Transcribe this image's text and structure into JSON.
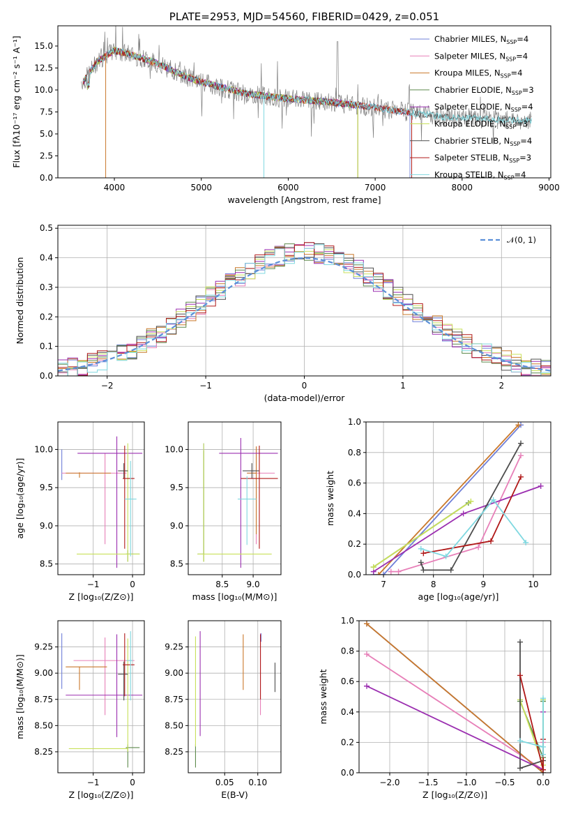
{
  "colors": {
    "Chabrier MILES": "#6f7fd8",
    "Salpeter MILES": "#e77fb8",
    "Kroupa MILES": "#c9782a",
    "Chabrier ELODIE": "#5e8a4c",
    "Salpeter ELODIE": "#9b2fb0",
    "Kroupa ELODIE": "#c8e05a",
    "Chabrier STELIB": "#4d4d4d",
    "Salpeter STELIB": "#b01818",
    "Kroupa STELIB": "#7fd8e0",
    "normal": "#5b8fd8",
    "observed": "#808080"
  },
  "chart_data": [
    {
      "id": "spectrum",
      "type": "line",
      "title": "PLATE=2953, MJD=54560, FIBERID=0429, z=0.051",
      "xlabel": "wavelength [Angstrom, rest frame]",
      "ylabel": "Flux [fλ10⁻¹⁷ erg cm⁻² s⁻¹ A⁻¹]",
      "xlim": [
        3350,
        9020
      ],
      "ylim": [
        0,
        17.3
      ],
      "xticks": [
        "4000",
        "5000",
        "6000",
        "7000",
        "8000",
        "9000"
      ],
      "yticks": [
        "0.0",
        "2.5",
        "5.0",
        "7.5",
        "10.0",
        "12.5",
        "15.0"
      ],
      "legend_position": "upper right",
      "legend": [
        {
          "label": "Chabrier MILES, N",
          "sub": "SSP",
          "suffix": "=4"
        },
        {
          "label": "Salpeter MILES, N",
          "sub": "SSP",
          "suffix": "=4"
        },
        {
          "label": "Kroupa MILES, N",
          "sub": "SSP",
          "suffix": "=4"
        },
        {
          "label": "Chabrier ELODIE, N",
          "sub": "SSP",
          "suffix": "=3"
        },
        {
          "label": "Salpeter ELODIE, N",
          "sub": "SSP",
          "suffix": "=4"
        },
        {
          "label": "Kroupa ELODIE, N",
          "sub": "SSP",
          "suffix": "=3"
        },
        {
          "label": "Chabrier STELIB, N",
          "sub": "SSP",
          "suffix": "=4"
        },
        {
          "label": "Salpeter STELIB, N",
          "sub": "SSP",
          "suffix": "=3"
        },
        {
          "label": "Kroupa STELIB, N",
          "sub": "SSP",
          "suffix": "=4"
        }
      ],
      "continuum": [
        [
          3650,
          11.0
        ],
        [
          3800,
          13.2
        ],
        [
          4000,
          14.5
        ],
        [
          4200,
          14.0
        ],
        [
          4500,
          13.0
        ],
        [
          4800,
          11.6
        ],
        [
          5000,
          10.9
        ],
        [
          5500,
          9.6
        ],
        [
          6000,
          9.0
        ],
        [
          6500,
          8.6
        ],
        [
          7000,
          8.0
        ],
        [
          7500,
          7.3
        ],
        [
          7800,
          6.9
        ],
        [
          8000,
          6.8
        ],
        [
          8500,
          6.6
        ],
        [
          8800,
          6.5
        ]
      ],
      "series_ranges": {
        "Chabrier MILES": [
          3640,
          7400
        ],
        "Salpeter MILES": [
          3640,
          7420
        ],
        "Kroupa MILES": [
          3640,
          7420
        ],
        "Chabrier ELODIE": [
          3640,
          6800
        ],
        "Salpeter ELODIE": [
          3640,
          6800
        ],
        "Kroupa ELODIE": [
          3640,
          6800
        ],
        "Chabrier STELIB": [
          3640,
          8800
        ],
        "Salpeter STELIB": [
          3640,
          7420
        ],
        "Kroupa STELIB": [
          3640,
          8800
        ]
      }
    },
    {
      "id": "residuals",
      "type": "step",
      "xlabel": "(data-model)/error",
      "ylabel": "Normed distribution",
      "xlim": [
        -2.5,
        2.5
      ],
      "ylim": [
        0,
        0.51
      ],
      "xticks": [
        "−2",
        "−1",
        "0",
        "1",
        "2"
      ],
      "yticks": [
        "0.0",
        "0.1",
        "0.2",
        "0.3",
        "0.4",
        "0.5"
      ],
      "legend_position": "upper right",
      "legend": [
        {
          "label": "𝒩(0, 1)"
        }
      ],
      "bin_width": 0.1
    },
    {
      "id": "age-vs-Z",
      "type": "errorbar",
      "xlabel": "Z [log₁₀(Z/Z⊙)]",
      "ylabel": "age  [log₁₀(age/yr)]",
      "xlim": [
        -1.9,
        0.3
      ],
      "ylim": [
        8.36,
        10.36
      ],
      "xticks": [
        "−1",
        "0"
      ],
      "yticks": [
        "8.5",
        "9.0",
        "9.5",
        "10.0"
      ],
      "points": [
        {
          "series": "Chabrier MILES",
          "x": -1.8,
          "y": 9.8,
          "xerr": [
            0.0,
            0.0
          ],
          "yerr": [
            0.2,
            0.2
          ]
        },
        {
          "series": "Salpeter MILES",
          "x": -0.7,
          "y": 9.69,
          "xerr": [
            1.1,
            0.55
          ],
          "yerr": [
            0.93,
            0.26
          ]
        },
        {
          "series": "Kroupa MILES",
          "x": -1.35,
          "y": 9.69,
          "xerr": [
            0.35,
            0.8
          ],
          "yerr": [
            0.06,
            0.01
          ]
        },
        {
          "series": "Chabrier ELODIE",
          "x": -0.12,
          "y": 8.63,
          "xerr": [
            0.05,
            0.3
          ],
          "yerr": [
            0.1,
            0.05
          ]
        },
        {
          "series": "Salpeter ELODIE",
          "x": -0.4,
          "y": 9.95,
          "xerr": [
            1.0,
            0.65
          ],
          "yerr": [
            1.5,
            0.22
          ]
        },
        {
          "series": "Kroupa ELODIE",
          "x": -0.12,
          "y": 8.63,
          "xerr": [
            1.3,
            0.3
          ],
          "yerr": [
            0.1,
            1.45
          ]
        },
        {
          "series": "Chabrier STELIB",
          "x": -0.22,
          "y": 9.72,
          "xerr": [
            0.15,
            0.1
          ],
          "yerr": [
            0.1,
            0.1
          ]
        },
        {
          "series": "Salpeter STELIB",
          "x": -0.2,
          "y": 9.62,
          "xerr": [
            0.05,
            0.25
          ],
          "yerr": [
            0.92,
            0.43
          ]
        },
        {
          "series": "Kroupa STELIB",
          "x": -0.05,
          "y": 9.35,
          "xerr": [
            0.15,
            0.15
          ],
          "yerr": [
            0.75,
            0.5
          ]
        }
      ]
    },
    {
      "id": "age-vs-mass",
      "type": "errorbar",
      "xlabel": "mass [log₁₀(M/M⊙)]",
      "ylabel": "",
      "xlim": [
        7.95,
        9.45
      ],
      "ylim": [
        8.36,
        10.36
      ],
      "xticks": [
        "8.5",
        "9.0"
      ],
      "yticks": [
        "8.5",
        "9.0",
        "9.5",
        "10.0"
      ],
      "points": [
        {
          "series": "Chabrier MILES",
          "x": 8.2,
          "y": 8.63,
          "xerr": [
            0.0,
            0.0
          ],
          "yerr": [
            0.0,
            1.45
          ]
        },
        {
          "series": "Salpeter MILES",
          "x": 9.05,
          "y": 9.69,
          "xerr": [
            0.15,
            0.3
          ],
          "yerr": [
            0.93,
            0.35
          ]
        },
        {
          "series": "Kroupa MILES",
          "x": 9.05,
          "y": 9.69,
          "xerr": [
            0.15,
            0.0
          ],
          "yerr": [
            0.8,
            0.35
          ]
        },
        {
          "series": "Chabrier ELODIE",
          "x": 8.2,
          "y": 8.63,
          "xerr": [
            0.1,
            0.0
          ],
          "yerr": [
            0.1,
            1.35
          ]
        },
        {
          "series": "Salpeter ELODIE",
          "x": 8.8,
          "y": 9.95,
          "xerr": [
            0.35,
            0.6
          ],
          "yerr": [
            1.5,
            0.2
          ]
        },
        {
          "series": "Kroupa ELODIE",
          "x": 8.2,
          "y": 8.63,
          "xerr": [
            0.1,
            1.1
          ],
          "yerr": [
            0.1,
            1.45
          ]
        },
        {
          "series": "Chabrier STELIB",
          "x": 8.98,
          "y": 9.72,
          "xerr": [
            0.15,
            0.12
          ],
          "yerr": [
            0.1,
            0.1
          ]
        },
        {
          "series": "Salpeter STELIB",
          "x": 9.1,
          "y": 9.62,
          "xerr": [
            0.3,
            0.3
          ],
          "yerr": [
            0.92,
            0.43
          ]
        },
        {
          "series": "Kroupa STELIB",
          "x": 8.9,
          "y": 9.35,
          "xerr": [
            0.15,
            0.15
          ],
          "yerr": [
            0.6,
            0.3
          ]
        }
      ]
    },
    {
      "id": "weights-vs-age",
      "type": "line",
      "xlabel": "age  [log₁₀(age/yr)]",
      "ylabel": "mass weight",
      "xlim": [
        6.65,
        10.35
      ],
      "ylim": [
        0.0,
        1.0
      ],
      "xticks": [
        "7",
        "8",
        "9",
        "10"
      ],
      "yticks": [
        "0.0",
        "0.2",
        "0.4",
        "0.6",
        "0.8",
        "1.0"
      ],
      "series": [
        {
          "name": "Chabrier MILES",
          "x": [
            6.8,
            7.0,
            9.75
          ],
          "y": [
            0.0,
            0.0,
            0.98
          ]
        },
        {
          "name": "Salpeter MILES",
          "x": [
            7.15,
            7.3,
            8.9,
            9.75
          ],
          "y": [
            0.02,
            0.02,
            0.18,
            0.78
          ]
        },
        {
          "name": "Kroupa MILES",
          "x": [
            6.9,
            9.7
          ],
          "y": [
            0.0,
            0.98
          ]
        },
        {
          "name": "Chabrier ELODIE",
          "x": [
            6.8,
            8.7
          ],
          "y": [
            0.05,
            0.47
          ]
        },
        {
          "name": "Salpeter ELODIE",
          "x": [
            6.8,
            8.6,
            10.15
          ],
          "y": [
            0.02,
            0.4,
            0.58
          ]
        },
        {
          "name": "Kroupa ELODIE",
          "x": [
            6.8,
            8.75
          ],
          "y": [
            0.05,
            0.48
          ]
        },
        {
          "name": "Chabrier STELIB",
          "x": [
            7.75,
            7.8,
            8.35,
            9.75
          ],
          "y": [
            0.08,
            0.03,
            0.03,
            0.86
          ]
        },
        {
          "name": "Salpeter STELIB",
          "x": [
            7.8,
            9.15,
            9.75
          ],
          "y": [
            0.14,
            0.22,
            0.64
          ]
        },
        {
          "name": "Kroupa STELIB",
          "x": [
            7.75,
            8.25,
            9.2,
            9.85
          ],
          "y": [
            0.17,
            0.12,
            0.49,
            0.21
          ]
        }
      ]
    },
    {
      "id": "mass-vs-Z",
      "type": "errorbar",
      "xlabel": "Z [log₁₀(Z/Z⊙)]",
      "ylabel": "mass [log₁₀(M/M⊙)]",
      "xlim": [
        -1.9,
        0.3
      ],
      "ylim": [
        8.05,
        9.5
      ],
      "xticks": [
        "−1",
        "0"
      ],
      "yticks": [
        "8.25",
        "8.50",
        "8.75",
        "9.00",
        "9.25"
      ],
      "points": [
        {
          "series": "Chabrier MILES",
          "x": -1.8,
          "y": 9.05,
          "xerr": [
            0.0,
            0.0
          ],
          "yerr": [
            0.2,
            0.33
          ]
        },
        {
          "series": "Salpeter MILES",
          "x": -0.7,
          "y": 9.12,
          "xerr": [
            0.8,
            0.75
          ],
          "yerr": [
            0.52,
            0.22
          ]
        },
        {
          "series": "Kroupa MILES",
          "x": -1.35,
          "y": 9.06,
          "xerr": [
            0.35,
            0.7
          ],
          "yerr": [
            0.22,
            0.0
          ]
        },
        {
          "series": "Chabrier ELODIE",
          "x": -0.12,
          "y": 8.29,
          "xerr": [
            0.05,
            0.3
          ],
          "yerr": [
            0.19,
            0.03
          ]
        },
        {
          "series": "Salpeter ELODIE",
          "x": -0.4,
          "y": 8.79,
          "xerr": [
            1.3,
            0.65
          ],
          "yerr": [
            0.4,
            0.58
          ]
        },
        {
          "series": "Kroupa ELODIE",
          "x": -0.12,
          "y": 8.28,
          "xerr": [
            1.5,
            0.0
          ],
          "yerr": [
            0.03,
            1.05
          ]
        },
        {
          "series": "Chabrier STELIB",
          "x": -0.22,
          "y": 8.99,
          "xerr": [
            0.15,
            0.1
          ],
          "yerr": [
            0.25,
            0.12
          ]
        },
        {
          "series": "Salpeter STELIB",
          "x": -0.2,
          "y": 9.08,
          "xerr": [
            0.05,
            0.25
          ],
          "yerr": [
            0.3,
            0.3
          ]
        },
        {
          "series": "Kroupa STELIB",
          "x": -0.05,
          "y": 9.12,
          "xerr": [
            0.1,
            0.05
          ],
          "yerr": [
            0.38,
            0.28
          ]
        }
      ]
    },
    {
      "id": "mass-vs-EBV",
      "type": "errorbar",
      "xlabel": "E(B-V)",
      "ylabel": "",
      "xlim": [
        -0.005,
        0.135
      ],
      "ylim": [
        8.05,
        9.5
      ],
      "xticks": [
        "0.05",
        "0.10"
      ],
      "yticks": [
        "8.25",
        "8.50",
        "8.75",
        "9.00",
        "9.25"
      ],
      "points": [
        {
          "series": "Chabrier MILES",
          "x": 0.105,
          "y": 9.3,
          "xerr": [
            0,
            0
          ],
          "yerr": [
            0.0,
            0.08
          ]
        },
        {
          "series": "Salpeter MILES",
          "x": 0.104,
          "y": 8.8,
          "xerr": [
            0,
            0
          ],
          "yerr": [
            0.2,
            0.58
          ]
        },
        {
          "series": "Kroupa MILES",
          "x": 0.078,
          "y": 9.12,
          "xerr": [
            0,
            0
          ],
          "yerr": [
            0.28,
            0.25
          ]
        },
        {
          "series": "Chabrier ELODIE",
          "x": 0.006,
          "y": 8.29,
          "xerr": [
            0,
            0
          ],
          "yerr": [
            0.19,
            0.03
          ]
        },
        {
          "series": "Salpeter ELODIE",
          "x": 0.013,
          "y": 8.9,
          "xerr": [
            0,
            0
          ],
          "yerr": [
            0.5,
            0.5
          ]
        },
        {
          "series": "Kroupa ELODIE",
          "x": 0.006,
          "y": 8.8,
          "xerr": [
            0,
            0
          ],
          "yerr": [
            0.5,
            0.55
          ]
        },
        {
          "series": "Chabrier STELIB",
          "x": 0.126,
          "y": 8.97,
          "xerr": [
            0,
            0
          ],
          "yerr": [
            0.15,
            0.13
          ]
        },
        {
          "series": "Salpeter STELIB",
          "x": 0.104,
          "y": 9.05,
          "xerr": [
            0,
            0
          ],
          "yerr": [
            0.3,
            0.32
          ]
        },
        {
          "series": "Kroupa STELIB",
          "x": 0.08,
          "y": 9.15,
          "xerr": [
            0,
            0
          ],
          "yerr": [
            0.0,
            0.0
          ]
        }
      ]
    },
    {
      "id": "weights-vs-Z",
      "type": "line",
      "xlabel": "Z [log₁₀(Z/Z⊙)]",
      "ylabel": "mass weight",
      "xlim": [
        -2.4,
        0.1
      ],
      "ylim": [
        0.0,
        1.0
      ],
      "xticks": [
        "−2.0",
        "−1.5",
        "−1.0",
        "−0.5",
        "0.0"
      ],
      "yticks": [
        "0.0",
        "0.2",
        "0.4",
        "0.6",
        "0.8",
        "1.0"
      ],
      "series": [
        {
          "name": "Chabrier MILES",
          "x": [
            -2.3,
            0.0
          ],
          "y": [
            0.98,
            0.0
          ]
        },
        {
          "name": "Salpeter MILES",
          "x": [
            -2.3,
            0.0,
            0.0
          ],
          "y": [
            0.78,
            0.02,
            0.2
          ]
        },
        {
          "name": "Kroupa MILES",
          "x": [
            -2.3,
            0.0
          ],
          "y": [
            0.98,
            0.0
          ]
        },
        {
          "name": "Chabrier ELODIE",
          "x": [
            -0.3,
            0.0,
            0.0
          ],
          "y": [
            0.47,
            0.1,
            0.47
          ]
        },
        {
          "name": "Salpeter ELODIE",
          "x": [
            -2.3,
            0.0,
            0.0
          ],
          "y": [
            0.57,
            0.02,
            0.4
          ]
        },
        {
          "name": "Kroupa ELODIE",
          "x": [
            -0.3,
            0.0,
            0.0
          ],
          "y": [
            0.48,
            0.05,
            0.48
          ]
        },
        {
          "name": "Chabrier STELIB",
          "x": [
            -0.3,
            -0.3,
            0.0,
            0.0
          ],
          "y": [
            0.86,
            0.03,
            0.08,
            0.02
          ]
        },
        {
          "name": "Salpeter STELIB",
          "x": [
            -0.3,
            0.0,
            0.0
          ],
          "y": [
            0.64,
            0.02,
            0.22
          ]
        },
        {
          "name": "Kroupa STELIB",
          "x": [
            -0.3,
            0.0,
            0.0,
            0.0
          ],
          "y": [
            0.21,
            0.17,
            0.49,
            0.12
          ]
        }
      ]
    }
  ]
}
